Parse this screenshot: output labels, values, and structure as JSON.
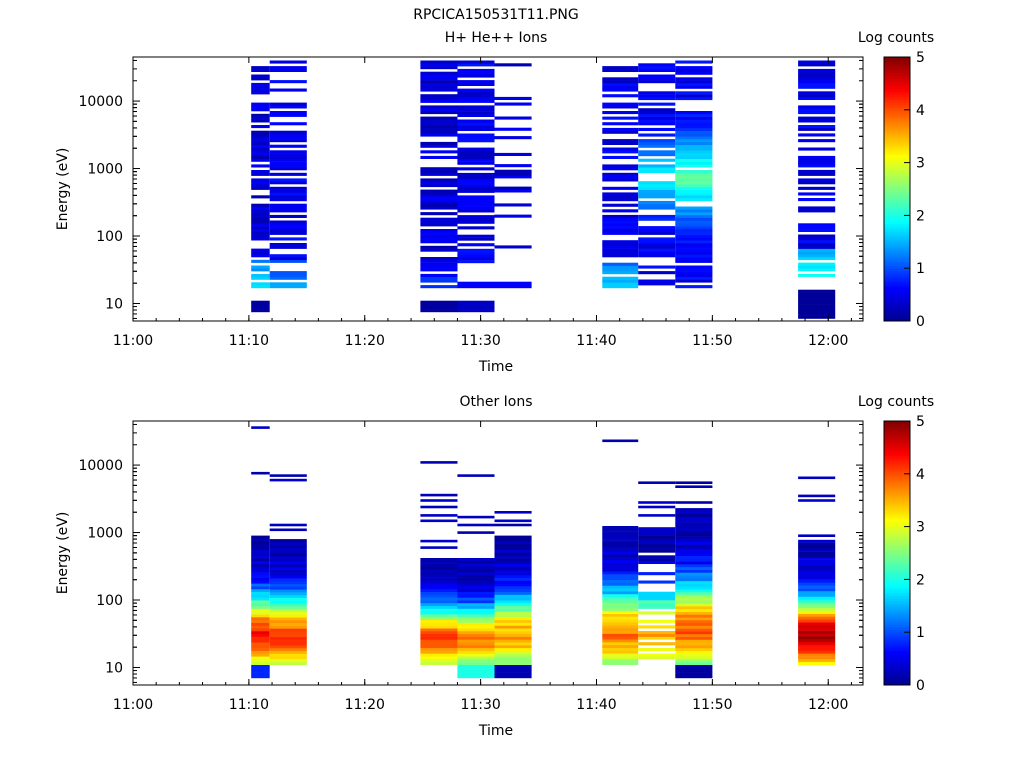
{
  "figure_title": "RPCICA150531T11.PNG",
  "colorscale": {
    "stops": [
      "#00008f",
      "#0000ff",
      "#0080ff",
      "#00ffff",
      "#80ff80",
      "#ffff00",
      "#ff8000",
      "#ff0000",
      "#800000"
    ]
  },
  "chart_data": [
    {
      "type": "heatmap",
      "title": "H+ He++ Ions",
      "xlabel": "Time",
      "ylabel": "Energy (eV)",
      "yscale": "log",
      "xlim": [
        "11:00",
        "11:63"
      ],
      "ylim": [
        5.5,
        45000
      ],
      "x_ticks": [
        "11:00",
        "11:10",
        "11:20",
        "11:30",
        "11:40",
        "11:50",
        "12:00"
      ],
      "y_ticks": [
        "10",
        "100",
        "1000",
        "10000"
      ],
      "colorbar": {
        "label": "Log counts",
        "range": [
          0,
          5
        ],
        "ticks": [
          "0",
          "1",
          "2",
          "3",
          "4",
          "5"
        ]
      },
      "columns": [
        {
          "t0": 10.2,
          "t1": 11.8,
          "blocks": [
            {
              "e0": 7.5,
              "e1": 11,
              "v": 0.1
            },
            {
              "e0": 17,
              "e1": 40000,
              "base": 0.4,
              "low_v": 1.7,
              "gaps": 0.35
            }
          ]
        },
        {
          "t0": 11.8,
          "t1": 15.0,
          "blocks": [
            {
              "e0": 17,
              "e1": 40000,
              "base": 0.5,
              "low_v": 1.4,
              "gaps": 0.35
            }
          ]
        },
        {
          "t0": 24.8,
          "t1": 28.0,
          "blocks": [
            {
              "e0": 7.5,
              "e1": 11,
              "v": 0.1
            },
            {
              "e0": 17,
              "e1": 40000,
              "base": 0.4,
              "low_v": 0.9,
              "gaps": 0.2
            }
          ]
        },
        {
          "t0": 28.0,
          "t1": 31.2,
          "blocks": [
            {
              "e0": 7.5,
              "e1": 11,
              "v": 0.3
            },
            {
              "e0": 17,
              "e1": 21,
              "v": 0.6
            },
            {
              "e0": 40,
              "e1": 40000,
              "base": 0.5,
              "gaps": 0.3
            }
          ]
        },
        {
          "t0": 31.2,
          "t1": 34.4,
          "blocks": [
            {
              "e0": 17,
              "e1": 21,
              "v": 0.6
            },
            {
              "e0": 45,
              "e1": 40000,
              "base": 0.4,
              "gaps": 0.75
            }
          ]
        },
        {
          "t0": 40.5,
          "t1": 43.6,
          "blocks": [
            {
              "e0": 17,
              "e1": 40000,
              "base": 0.5,
              "low_v": 1.6,
              "gaps": 0.3
            }
          ]
        },
        {
          "t0": 43.6,
          "t1": 46.8,
          "blocks": [
            {
              "e0": 17,
              "e1": 40000,
              "base": 0.5,
              "mid_v": 2.0,
              "gaps": 0.3
            }
          ]
        },
        {
          "t0": 46.8,
          "t1": 50.0,
          "blocks": [
            {
              "e0": 17,
              "e1": 40000,
              "base": 0.6,
              "mid_v": 2.4,
              "gaps": 0.2
            }
          ]
        },
        {
          "t0": 57.4,
          "t1": 60.6,
          "blocks": [
            {
              "e0": 6,
              "e1": 16,
              "v": 0.05
            },
            {
              "e0": 25,
              "e1": 40000,
              "base": 0.5,
              "low_v": 1.9,
              "gaps": 0.3
            }
          ]
        }
      ]
    },
    {
      "type": "heatmap",
      "title": "Other Ions",
      "xlabel": "Time",
      "ylabel": "Energy (eV)",
      "yscale": "log",
      "xlim": [
        "11:00",
        "11:63"
      ],
      "ylim": [
        5.5,
        45000
      ],
      "x_ticks": [
        "11:00",
        "11:10",
        "11:20",
        "11:30",
        "11:40",
        "11:50",
        "12:00"
      ],
      "y_ticks": [
        "10",
        "100",
        "1000",
        "10000"
      ],
      "colorbar": {
        "label": "Log counts",
        "range": [
          0,
          5
        ],
        "ticks": [
          "0",
          "1",
          "2",
          "3",
          "4",
          "5"
        ]
      },
      "columns": [
        {
          "t0": 10.2,
          "t1": 11.8,
          "lines": [
            36000,
            7600
          ],
          "blocks": [
            {
              "e0": 7,
              "e1": 11,
              "v": 0.8
            },
            {
              "e0": 11,
              "e1": 900,
              "profile": "peak",
              "pk": 3.8
            }
          ]
        },
        {
          "t0": 11.8,
          "t1": 15.0,
          "lines": [
            7000,
            6000,
            1300,
            1100
          ],
          "blocks": [
            {
              "e0": 11,
              "e1": 800,
              "profile": "peak",
              "pk": 3.6
            }
          ]
        },
        {
          "t0": 24.8,
          "t1": 28.0,
          "lines": [
            11000,
            3600,
            3000,
            2400,
            1800,
            1500,
            750,
            600
          ],
          "blocks": [
            {
              "e0": 11,
              "e1": 420,
              "profile": "peak",
              "pk": 3.6
            }
          ]
        },
        {
          "t0": 28.0,
          "t1": 31.2,
          "lines": [
            7000,
            1700,
            1300,
            1000
          ],
          "blocks": [
            {
              "e0": 7,
              "e1": 11,
              "v": 2.0
            },
            {
              "e0": 11,
              "e1": 420,
              "profile": "peak",
              "pk": 3.3
            }
          ]
        },
        {
          "t0": 31.2,
          "t1": 34.4,
          "lines": [
            2000,
            1500,
            1300
          ],
          "blocks": [
            {
              "e0": 7,
              "e1": 11,
              "v": 0.2
            },
            {
              "e0": 11,
              "e1": 900,
              "profile": "peak",
              "pk": 3.1
            }
          ]
        },
        {
          "t0": 40.5,
          "t1": 43.6,
          "lines": [
            23000
          ],
          "blocks": [
            {
              "e0": 11,
              "e1": 1250,
              "profile": "peak",
              "pk": 3.3
            }
          ]
        },
        {
          "t0": 43.6,
          "t1": 46.8,
          "lines": [
            5500,
            2800,
            2400,
            1800
          ],
          "blocks": [
            {
              "e0": 11,
              "e1": 1200,
              "profile": "peak",
              "pk": 3.0,
              "gaps": 0.35
            }
          ]
        },
        {
          "t0": 46.8,
          "t1": 50.0,
          "lines": [
            5500,
            4800,
            2800
          ],
          "blocks": [
            {
              "e0": 7,
              "e1": 11,
              "v": 0.1
            },
            {
              "e0": 11,
              "e1": 2300,
              "profile": "peak",
              "pk": 3.4
            }
          ]
        },
        {
          "t0": 57.4,
          "t1": 60.6,
          "lines": [
            6500,
            3500,
            3000,
            900
          ],
          "blocks": [
            {
              "e0": 11,
              "e1": 780,
              "profile": "peak",
              "pk": 4.3
            }
          ]
        }
      ]
    }
  ]
}
